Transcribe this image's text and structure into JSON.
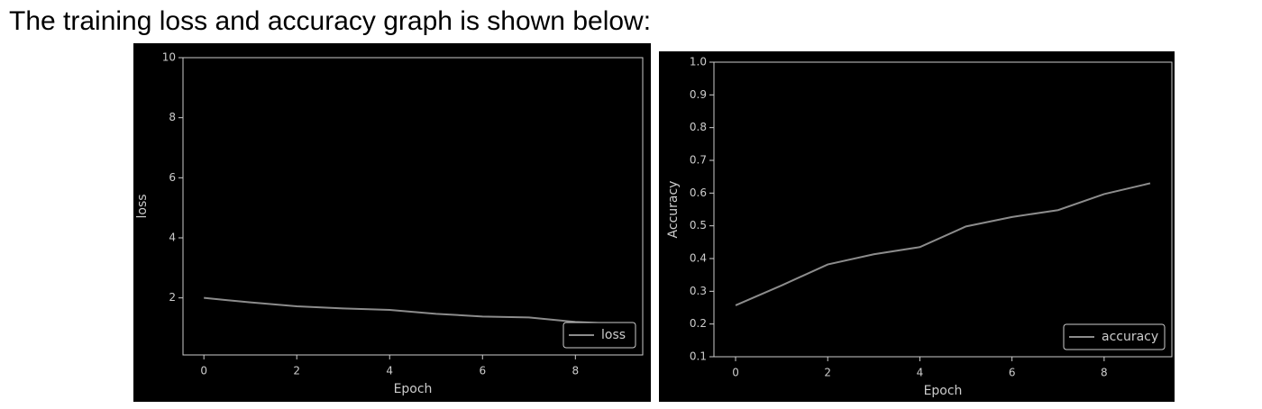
{
  "heading": "The training loss and accuracy graph is shown below:",
  "chart_data": [
    {
      "type": "line",
      "x": [
        0,
        1,
        2,
        3,
        4,
        5,
        6,
        7,
        8,
        9
      ],
      "series": [
        {
          "name": "loss",
          "color": "#8c8c8c",
          "values": [
            2.0,
            1.85,
            1.72,
            1.65,
            1.6,
            1.47,
            1.38,
            1.35,
            1.2,
            1.13
          ]
        }
      ],
      "xlim": [
        -0.45,
        9.45
      ],
      "ylim": [
        0.1,
        10
      ],
      "xticks": [
        0,
        2,
        4,
        6,
        8
      ],
      "yticks": [
        2,
        4,
        6,
        8,
        10
      ],
      "xlabel": "Epoch",
      "ylabel": "loss",
      "legend": "lower right",
      "background": "#000000"
    },
    {
      "type": "line",
      "x": [
        0,
        1,
        2,
        3,
        4,
        5,
        6,
        7,
        8,
        9
      ],
      "series": [
        {
          "name": "accuracy",
          "color": "#8c8c8c",
          "values": [
            0.257,
            0.318,
            0.382,
            0.413,
            0.435,
            0.498,
            0.527,
            0.548,
            0.597,
            0.63
          ]
        }
      ],
      "xlim": [
        -0.47,
        9.47
      ],
      "ylim": [
        0.1,
        1.0
      ],
      "xticks": [
        0,
        2,
        4,
        6,
        8
      ],
      "yticks": [
        0.1,
        0.2,
        0.3,
        0.4,
        0.5,
        0.6,
        0.7,
        0.8,
        0.9,
        {
          "value": 1.0,
          "label": "1.0"
        }
      ],
      "xlabel": "Epoch",
      "ylabel": "Accuracy",
      "legend": "lower right",
      "background": "#000000"
    }
  ]
}
